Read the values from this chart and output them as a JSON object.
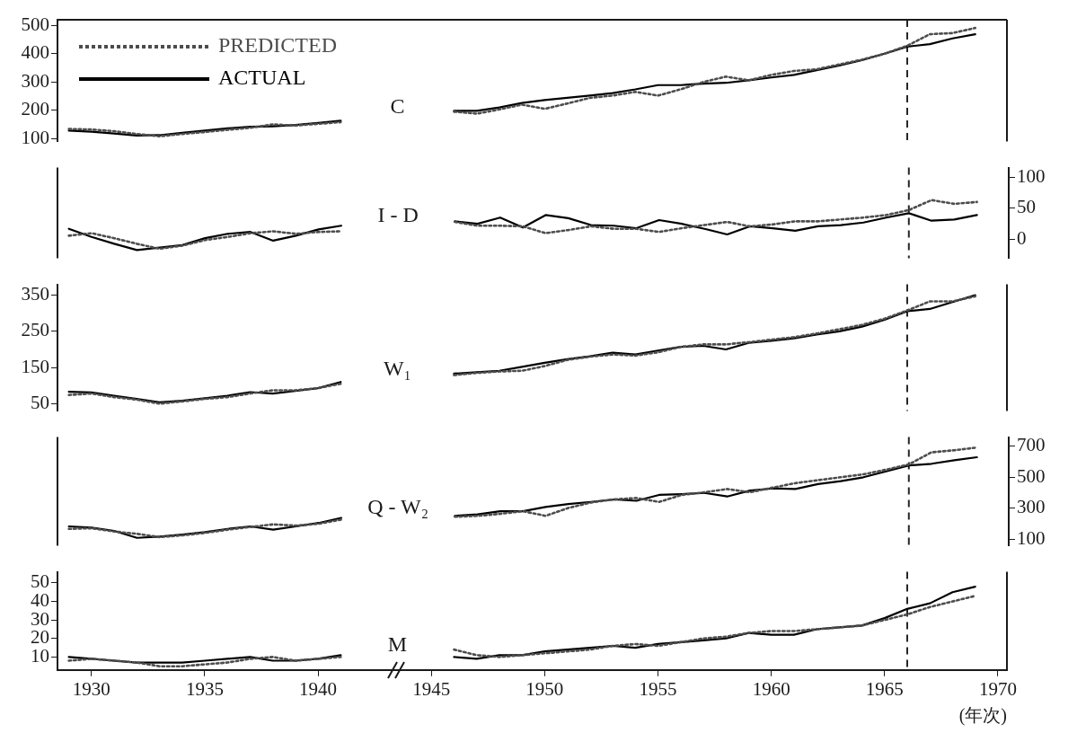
{
  "chart_data": [
    {
      "type": "line",
      "title": "C",
      "legend": "top left",
      "marker": "none",
      "tick_labels": "y",
      "x": [
        1929,
        1930,
        1931,
        1932,
        1933,
        1934,
        1935,
        1936,
        1937,
        1938,
        1939,
        1940,
        1941,
        1942,
        1943,
        1944,
        1945,
        1946,
        1947,
        1948,
        1949,
        1950,
        1951,
        1952,
        1953,
        1954,
        1955,
        1956,
        1957,
        1958,
        1959,
        1960,
        1961,
        1962,
        1963,
        1964,
        1965,
        1966,
        1967,
        1968,
        1969
      ],
      "xlim": [
        1928.5,
        1970.4
      ],
      "ylim": [
        90,
        520
      ],
      "yticks": [
        100,
        200,
        300,
        400,
        500
      ],
      "series": [
        {
          "name": "PREDICTED",
          "color": "#4d4d4d",
          "line_style": "dotted",
          "values": [
            134,
            132,
            126,
            116,
            108,
            116,
            123,
            131,
            138,
            150,
            146,
            152,
            158,
            null,
            null,
            null,
            null,
            195,
            188,
            203,
            220,
            205,
            224,
            244,
            252,
            265,
            252,
            274,
            300,
            319,
            306,
            325,
            339,
            345,
            362,
            379,
            400,
            428,
            469,
            473,
            491
          ]
        },
        {
          "name": "ACTUAL",
          "color": "#000000",
          "line_style": "solid",
          "values": [
            128,
            124,
            118,
            111,
            112,
            120,
            128,
            136,
            142,
            143,
            148,
            155,
            163,
            null,
            null,
            null,
            null,
            198,
            198,
            210,
            226,
            236,
            244,
            252,
            261,
            274,
            289,
            289,
            294,
            297,
            306,
            316,
            325,
            342,
            358,
            377,
            400,
            425,
            434,
            454,
            469
          ]
        }
      ],
      "ref_lines": [
        {
          "axis": "x",
          "value": 1966,
          "line_style": "dashed",
          "color": "#262626"
        }
      ]
    },
    {
      "type": "line",
      "title": "I - D",
      "marker": "none",
      "tick_labels": "y",
      "x": [
        1929,
        1930,
        1931,
        1932,
        1933,
        1934,
        1935,
        1936,
        1937,
        1938,
        1939,
        1940,
        1941,
        1942,
        1943,
        1944,
        1945,
        1946,
        1947,
        1948,
        1949,
        1950,
        1951,
        1952,
        1953,
        1954,
        1955,
        1956,
        1957,
        1958,
        1959,
        1960,
        1961,
        1962,
        1963,
        1964,
        1965,
        1966,
        1967,
        1968,
        1969
      ],
      "xlim": [
        1928.5,
        1970.4
      ],
      "y2lim": [
        -30,
        115
      ],
      "y2ticks": [
        0,
        50,
        100
      ],
      "series": [
        {
          "color": "#4d4d4d",
          "line_style": "dotted",
          "axis": "y2",
          "values": [
            6,
            10,
            2,
            -7,
            -15,
            -10,
            -1,
            4,
            10,
            13,
            9,
            12,
            13,
            null,
            null,
            null,
            null,
            28,
            22,
            22,
            21,
            10,
            15,
            21,
            17,
            17,
            12,
            18,
            23,
            28,
            21,
            24,
            29,
            29,
            32,
            35,
            39,
            47,
            63,
            57,
            60
          ]
        },
        {
          "color": "#000000",
          "line_style": "solid",
          "axis": "y2",
          "values": [
            17,
            4,
            -7,
            -17,
            -13,
            -9,
            2,
            9,
            12,
            -2,
            6,
            16,
            22,
            null,
            null,
            null,
            null,
            29,
            25,
            35,
            19,
            39,
            34,
            23,
            22,
            18,
            31,
            25,
            17,
            8,
            21,
            18,
            14,
            21,
            23,
            27,
            35,
            42,
            30,
            32,
            39
          ]
        }
      ],
      "ref_lines": [
        {
          "axis": "x",
          "value": 1966,
          "line_style": "dashed",
          "color": "#262626"
        }
      ]
    },
    {
      "type": "line",
      "title": "W₁",
      "marker": "none",
      "tick_labels": "y",
      "x": [
        1929,
        1930,
        1931,
        1932,
        1933,
        1934,
        1935,
        1936,
        1937,
        1938,
        1939,
        1940,
        1941,
        1942,
        1943,
        1944,
        1945,
        1946,
        1947,
        1948,
        1949,
        1950,
        1951,
        1952,
        1953,
        1954,
        1955,
        1956,
        1957,
        1958,
        1959,
        1960,
        1961,
        1962,
        1963,
        1964,
        1965,
        1966,
        1967,
        1968,
        1969
      ],
      "xlim": [
        1928.5,
        1970.4
      ],
      "ylim": [
        30,
        380
      ],
      "yticks": [
        50,
        150,
        250,
        350
      ],
      "series": [
        {
          "color": "#4d4d4d",
          "line_style": "dotted",
          "values": [
            74,
            78,
            68,
            61,
            50,
            56,
            63,
            68,
            78,
            87,
            87,
            93,
            105,
            null,
            null,
            null,
            null,
            129,
            135,
            139,
            141,
            154,
            171,
            180,
            186,
            183,
            192,
            207,
            214,
            214,
            220,
            227,
            234,
            244,
            256,
            268,
            285,
            308,
            333,
            333,
            347
          ]
        },
        {
          "color": "#000000",
          "line_style": "solid",
          "values": [
            83,
            81,
            72,
            63,
            54,
            58,
            65,
            72,
            82,
            78,
            85,
            93,
            110,
            null,
            null,
            null,
            null,
            133,
            137,
            141,
            152,
            163,
            173,
            181,
            191,
            186,
            197,
            207,
            210,
            200,
            218,
            224,
            231,
            241,
            250,
            263,
            282,
            306,
            312,
            331,
            350
          ]
        }
      ],
      "ref_lines": [
        {
          "axis": "x",
          "value": 1966,
          "line_style": "dashed",
          "color": "#262626"
        }
      ]
    },
    {
      "type": "line",
      "title": "Q - W₂",
      "marker": "none",
      "tick_labels": "y",
      "x": [
        1929,
        1930,
        1931,
        1932,
        1933,
        1934,
        1935,
        1936,
        1937,
        1938,
        1939,
        1940,
        1941,
        1942,
        1943,
        1944,
        1945,
        1946,
        1947,
        1948,
        1949,
        1950,
        1951,
        1952,
        1953,
        1954,
        1955,
        1956,
        1957,
        1958,
        1959,
        1960,
        1961,
        1962,
        1963,
        1964,
        1965,
        1966,
        1967,
        1968,
        1969
      ],
      "xlim": [
        1928.5,
        1970.4
      ],
      "y2lim": [
        60,
        760
      ],
      "y2ticks": [
        100,
        300,
        500,
        700
      ],
      "series": [
        {
          "color": "#4d4d4d",
          "line_style": "dotted",
          "axis": "y2",
          "values": [
            168,
            172,
            151,
            136,
            115,
            126,
            142,
            163,
            180,
            197,
            189,
            201,
            228,
            null,
            null,
            null,
            null,
            246,
            252,
            265,
            282,
            252,
            303,
            338,
            358,
            367,
            342,
            387,
            404,
            425,
            404,
            434,
            463,
            482,
            501,
            520,
            550,
            584,
            662,
            675,
            693
          ]
        },
        {
          "color": "#000000",
          "line_style": "solid",
          "axis": "y2",
          "values": [
            184,
            176,
            155,
            110,
            118,
            131,
            147,
            168,
            184,
            163,
            184,
            206,
            239,
            null,
            null,
            null,
            null,
            252,
            261,
            282,
            282,
            309,
            328,
            342,
            358,
            349,
            387,
            392,
            400,
            377,
            415,
            429,
            425,
            457,
            476,
            501,
            539,
            577,
            588,
            611,
            630
          ]
        }
      ],
      "ref_lines": [
        {
          "axis": "x",
          "value": 1966,
          "line_style": "dashed",
          "color": "#262626"
        }
      ]
    },
    {
      "type": "line",
      "title": "M",
      "xlabel": "(年次)",
      "marker": "none",
      "x": [
        1929,
        1930,
        1931,
        1932,
        1933,
        1934,
        1935,
        1936,
        1937,
        1938,
        1939,
        1940,
        1941,
        1942,
        1943,
        1944,
        1945,
        1946,
        1947,
        1948,
        1949,
        1950,
        1951,
        1952,
        1953,
        1954,
        1955,
        1956,
        1957,
        1958,
        1959,
        1960,
        1961,
        1962,
        1963,
        1964,
        1965,
        1966,
        1967,
        1968,
        1969
      ],
      "xlim": [
        1928.5,
        1970.4
      ],
      "xticks": [
        1930,
        1935,
        1940,
        1945,
        1950,
        1955,
        1960,
        1965,
        1970
      ],
      "ylim": [
        3,
        56
      ],
      "yticks": [
        10,
        20,
        30,
        40,
        50
      ],
      "series": [
        {
          "color": "#4d4d4d",
          "line_style": "dotted",
          "values": [
            8,
            9,
            8,
            7,
            5,
            5,
            6,
            7,
            9,
            10,
            8,
            9,
            10,
            null,
            null,
            null,
            null,
            14,
            11,
            10,
            11,
            12,
            13,
            14,
            16,
            17,
            16,
            18,
            20,
            21,
            23,
            24,
            24,
            25,
            26,
            27,
            30,
            33,
            37,
            40,
            43
          ]
        },
        {
          "color": "#000000",
          "line_style": "solid",
          "values": [
            10,
            9,
            8,
            7,
            7,
            7,
            8,
            9,
            10,
            8,
            8,
            9,
            11,
            null,
            null,
            null,
            null,
            10,
            9,
            11,
            11,
            13,
            14,
            15,
            16,
            15,
            17,
            18,
            19,
            20,
            23,
            22,
            22,
            25,
            26,
            27,
            31,
            36,
            39,
            45,
            48
          ]
        }
      ],
      "ref_lines": [
        {
          "axis": "x",
          "value": 1966,
          "line_style": "dashed",
          "color": "#262626"
        }
      ]
    }
  ]
}
